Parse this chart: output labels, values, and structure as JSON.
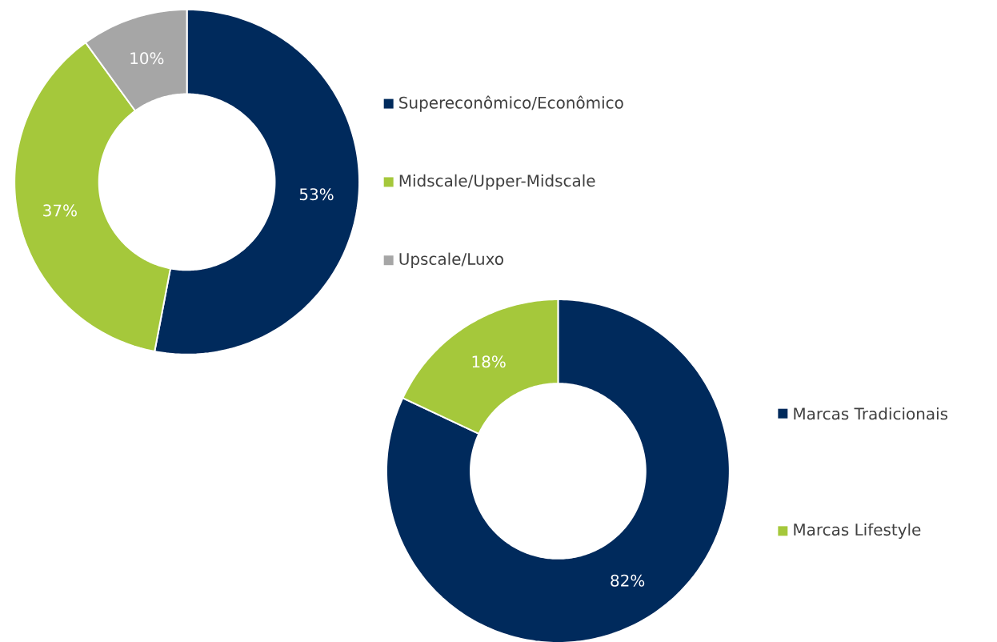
{
  "chart_data": [
    {
      "type": "donut",
      "categories": [
        "Supereconômico/Econômico",
        "Midscale/Upper-Midscale",
        "Upscale/Luxo"
      ],
      "values": [
        53,
        37,
        10
      ],
      "colors": [
        "#002a5c",
        "#a5c83b",
        "#a6a6a6"
      ],
      "value_labels": [
        "53%",
        "37%",
        "10%"
      ],
      "legend": "right"
    },
    {
      "type": "donut",
      "categories": [
        "Marcas Tradicionais",
        "Marcas Lifestyle"
      ],
      "values": [
        82,
        18
      ],
      "colors": [
        "#002a5c",
        "#a5c83b"
      ],
      "value_labels": [
        "82%",
        "18%"
      ],
      "legend": "right"
    }
  ]
}
